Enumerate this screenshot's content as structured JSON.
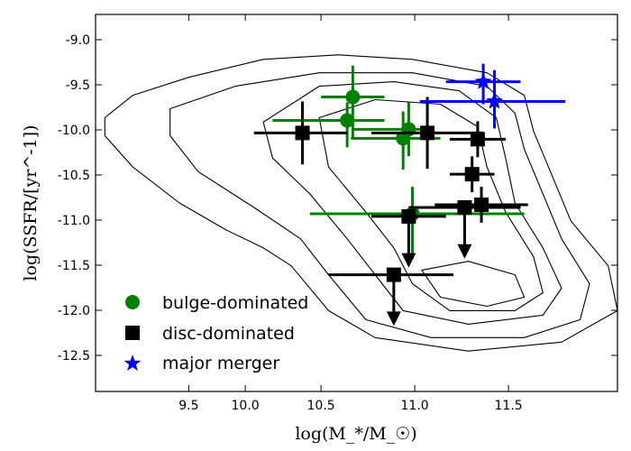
{
  "chart_data": {
    "type": "scatter",
    "xlabel": "log(M_*/M_☉)",
    "ylabel": "log(SSFR/[yr^-1])",
    "xlim": [
      9.1,
      11.9
    ],
    "ylim": [
      -12.9,
      -8.7
    ],
    "xticks": [
      "9.5",
      "10.0",
      "10.5",
      "11.0",
      "11.5"
    ],
    "yticks": [
      "-9.0",
      "-9.5",
      "-10.0",
      "-10.5",
      "-11.0",
      "-11.5",
      "-12.0",
      "-12.5"
    ],
    "legend_position": "bottom-left",
    "contours": [
      {
        "level": 1,
        "points": [
          [
            9.15,
            -9.85
          ],
          [
            9.3,
            -9.6
          ],
          [
            9.6,
            -9.4
          ],
          [
            10.0,
            -9.2
          ],
          [
            10.4,
            -9.15
          ],
          [
            10.8,
            -9.2
          ],
          [
            11.2,
            -9.35
          ],
          [
            11.4,
            -9.6
          ],
          [
            11.45,
            -10.0
          ],
          [
            11.55,
            -10.5
          ],
          [
            11.65,
            -11.0
          ],
          [
            11.85,
            -11.5
          ],
          [
            11.9,
            -12.0
          ],
          [
            11.6,
            -12.35
          ],
          [
            11.1,
            -12.45
          ],
          [
            10.6,
            -12.3
          ],
          [
            10.35,
            -12.0
          ],
          [
            10.15,
            -11.5
          ],
          [
            10.0,
            -11.3
          ],
          [
            9.8,
            -11.1
          ],
          [
            9.55,
            -10.8
          ],
          [
            9.3,
            -10.4
          ],
          [
            9.15,
            -10.05
          ]
        ]
      },
      {
        "level": 2,
        "points": [
          [
            9.5,
            -9.75
          ],
          [
            9.85,
            -9.5
          ],
          [
            10.3,
            -9.35
          ],
          [
            10.8,
            -9.35
          ],
          [
            11.2,
            -9.5
          ],
          [
            11.35,
            -9.8
          ],
          [
            11.4,
            -10.2
          ],
          [
            11.5,
            -10.7
          ],
          [
            11.6,
            -11.2
          ],
          [
            11.75,
            -11.7
          ],
          [
            11.7,
            -12.1
          ],
          [
            11.4,
            -12.3
          ],
          [
            10.9,
            -12.3
          ],
          [
            10.55,
            -12.1
          ],
          [
            10.35,
            -11.6
          ],
          [
            10.2,
            -11.2
          ],
          [
            9.95,
            -10.85
          ],
          [
            9.65,
            -10.45
          ],
          [
            9.5,
            -10.05
          ]
        ]
      },
      {
        "level": 3,
        "points": [
          [
            10.0,
            -9.9
          ],
          [
            10.3,
            -9.5
          ],
          [
            10.7,
            -9.45
          ],
          [
            11.05,
            -9.55
          ],
          [
            11.25,
            -9.85
          ],
          [
            11.3,
            -10.3
          ],
          [
            11.35,
            -10.8
          ],
          [
            11.5,
            -11.3
          ],
          [
            11.6,
            -11.75
          ],
          [
            11.5,
            -12.05
          ],
          [
            11.1,
            -12.15
          ],
          [
            10.75,
            -12.0
          ],
          [
            10.6,
            -11.6
          ],
          [
            10.45,
            -11.2
          ],
          [
            10.25,
            -10.7
          ],
          [
            10.05,
            -10.3
          ]
        ]
      },
      {
        "level": 4,
        "points": [
          [
            10.3,
            -9.85
          ],
          [
            10.6,
            -9.65
          ],
          [
            10.95,
            -9.7
          ],
          [
            11.15,
            -9.95
          ],
          [
            11.2,
            -10.4
          ],
          [
            11.3,
            -10.9
          ],
          [
            11.45,
            -11.4
          ],
          [
            11.5,
            -11.8
          ],
          [
            11.35,
            -12.0
          ],
          [
            11.0,
            -12.0
          ],
          [
            10.8,
            -11.7
          ],
          [
            10.7,
            -11.3
          ],
          [
            10.55,
            -10.9
          ],
          [
            10.35,
            -10.4
          ]
        ]
      },
      {
        "level": 5,
        "points": [
          [
            10.85,
            -11.55
          ],
          [
            11.1,
            -11.45
          ],
          [
            11.35,
            -11.6
          ],
          [
            11.4,
            -11.85
          ],
          [
            11.2,
            -11.95
          ],
          [
            10.95,
            -11.85
          ]
        ]
      }
    ],
    "series": [
      {
        "name": "bulge-dominated",
        "marker": "circle",
        "color": "#008000",
        "points": [
          {
            "x": 10.48,
            "y": -9.62,
            "xerr": [
              0.17,
              0.17
            ],
            "yerr": [
              0.45,
              0.35
            ]
          },
          {
            "x": 10.45,
            "y": -9.88,
            "xerr": [
              0.4,
              0.2
            ],
            "yerr": [
              0.3,
              0.2
            ]
          },
          {
            "x": 10.78,
            "y": -9.98,
            "xerr": [
              0.3,
              0.1
            ],
            "yerr": [
              0.3,
              0.3
            ]
          },
          {
            "x": 10.75,
            "y": -10.08,
            "xerr": [
              0.28,
              0.2
            ],
            "yerr": [
              0.35,
              0.3
            ]
          },
          {
            "x": 10.8,
            "y": -10.92,
            "xerr": [
              0.55,
              0.6
            ],
            "yerr": [
              0.5,
              0.3
            ]
          }
        ]
      },
      {
        "name": "disc-dominated",
        "marker": "square",
        "color": "#000000",
        "points": [
          {
            "x": 10.21,
            "y": -10.02,
            "xerr": [
              0.26,
              0.24
            ],
            "yerr": [
              0.35,
              0.35
            ],
            "upper_limit": false
          },
          {
            "x": 10.88,
            "y": -10.02,
            "xerr": [
              0.3,
              0.3
            ],
            "yerr": [
              0.4,
              0.4
            ],
            "upper_limit": false
          },
          {
            "x": 11.15,
            "y": -10.09,
            "xerr": [
              0.15,
              0.15
            ],
            "yerr": [
              0.2,
              0.2
            ],
            "upper_limit": false
          },
          {
            "x": 11.12,
            "y": -10.48,
            "xerr": [
              0.12,
              0.12
            ],
            "yerr": [
              0.2,
              0.2
            ],
            "upper_limit": false
          },
          {
            "x": 11.17,
            "y": -10.82,
            "xerr": [
              0.25,
              0.25
            ],
            "yerr": [
              0.2,
              0.2
            ],
            "upper_limit": false
          },
          {
            "x": 11.08,
            "y": -10.85,
            "xerr": [
              0.3,
              0.3
            ],
            "yerr": [
              0.0,
              0.0
            ],
            "upper_limit": true
          },
          {
            "x": 10.78,
            "y": -10.95,
            "xerr": [
              0.2,
              0.2
            ],
            "yerr": [
              0.0,
              0.0
            ],
            "upper_limit": true
          },
          {
            "x": 10.7,
            "y": -11.6,
            "xerr": [
              0.35,
              0.32
            ],
            "yerr": [
              0.0,
              0.0
            ],
            "upper_limit": true
          }
        ]
      },
      {
        "name": "major merger",
        "marker": "star",
        "color": "#0000ff",
        "points": [
          {
            "x": 11.18,
            "y": -9.45,
            "xerr": [
              0.2,
              0.2
            ],
            "yerr": [
              0.25,
              0.2
            ]
          },
          {
            "x": 11.24,
            "y": -9.67,
            "xerr": [
              0.4,
              0.38
            ],
            "yerr": [
              0.3,
              0.35
            ]
          }
        ]
      }
    ]
  }
}
